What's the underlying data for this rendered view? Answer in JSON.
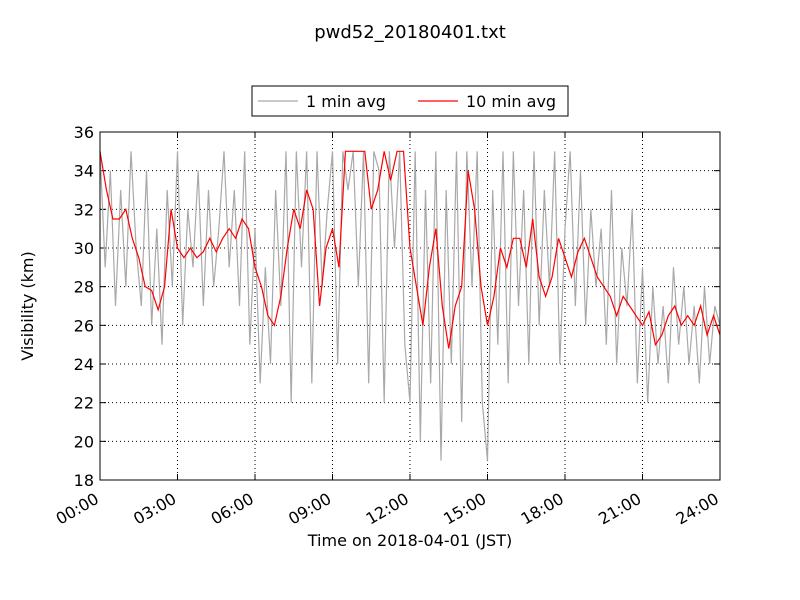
{
  "chart_data": {
    "type": "line",
    "title": "pwd52_20180401.txt",
    "xlabel": "Time on 2018-04-01 (JST)",
    "ylabel": "Visibility (km)",
    "xlim": [
      0,
      24
    ],
    "ylim": [
      18,
      36
    ],
    "xticks": [
      {
        "value": 0,
        "label": "00:00"
      },
      {
        "value": 3,
        "label": "03:00"
      },
      {
        "value": 6,
        "label": "06:00"
      },
      {
        "value": 9,
        "label": "09:00"
      },
      {
        "value": 12,
        "label": "12:00"
      },
      {
        "value": 15,
        "label": "15:00"
      },
      {
        "value": 18,
        "label": "18:00"
      },
      {
        "value": 21,
        "label": "21:00"
      },
      {
        "value": 24,
        "label": "24:00"
      }
    ],
    "yticks": [
      18,
      20,
      22,
      24,
      26,
      28,
      30,
      32,
      34,
      36
    ],
    "grid": true,
    "legend": "upper center",
    "series": [
      {
        "name": "1 min avg",
        "color": "#a9a9a9",
        "x": [
          0,
          0.2,
          0.4,
          0.6,
          0.8,
          1,
          1.2,
          1.4,
          1.6,
          1.8,
          2,
          2.2,
          2.4,
          2.6,
          2.8,
          3,
          3.2,
          3.4,
          3.6,
          3.8,
          4,
          4.2,
          4.4,
          4.6,
          4.8,
          5,
          5.2,
          5.4,
          5.6,
          5.8,
          6,
          6.2,
          6.4,
          6.6,
          6.8,
          7,
          7.2,
          7.4,
          7.6,
          7.8,
          8,
          8.2,
          8.4,
          8.6,
          8.8,
          9,
          9.2,
          9.4,
          9.6,
          9.8,
          10,
          10.2,
          10.4,
          10.6,
          10.8,
          11,
          11.2,
          11.4,
          11.6,
          11.8,
          12,
          12.2,
          12.4,
          12.6,
          12.8,
          13,
          13.2,
          13.4,
          13.6,
          13.8,
          14,
          14.2,
          14.4,
          14.6,
          14.8,
          15,
          15.2,
          15.4,
          15.6,
          15.8,
          16,
          16.2,
          16.4,
          16.6,
          16.8,
          17,
          17.2,
          17.4,
          17.6,
          17.8,
          18,
          18.2,
          18.4,
          18.6,
          18.8,
          19,
          19.2,
          19.4,
          19.6,
          19.8,
          20,
          20.2,
          20.4,
          20.6,
          20.8,
          21,
          21.2,
          21.4,
          21.6,
          21.8,
          22,
          22.2,
          22.4,
          22.6,
          22.8,
          23,
          23.2,
          23.4,
          23.6,
          23.8,
          24
        ],
        "values": [
          35,
          29,
          34,
          27,
          33,
          28,
          35,
          30,
          27,
          34,
          26,
          31,
          25,
          33,
          28,
          35,
          26,
          32,
          29,
          34,
          27,
          33,
          28,
          31,
          35,
          29,
          33,
          27,
          35,
          25,
          31,
          23,
          29,
          24,
          33,
          27,
          35,
          22,
          35,
          29,
          35,
          23,
          35,
          28,
          32,
          35,
          24,
          35,
          33,
          35,
          28,
          35,
          23,
          35,
          34,
          22,
          35,
          30,
          35,
          25,
          22,
          35,
          20,
          33,
          23,
          35,
          19,
          33,
          24,
          35,
          21,
          35,
          28,
          35,
          22,
          19,
          33,
          25,
          35,
          23,
          35,
          27,
          33,
          24,
          35,
          26,
          33,
          28,
          35,
          24,
          31,
          35,
          27,
          34,
          26,
          32,
          28,
          31,
          25,
          33,
          24,
          30,
          27,
          32,
          23,
          29,
          22,
          28,
          24,
          27,
          23,
          29,
          25,
          28,
          24,
          27,
          23,
          28,
          24,
          27,
          26
        ]
      },
      {
        "name": "10 min avg",
        "color": "#ff0000",
        "x": [
          0,
          0.25,
          0.5,
          0.75,
          1,
          1.25,
          1.5,
          1.75,
          2,
          2.25,
          2.5,
          2.75,
          3,
          3.25,
          3.5,
          3.75,
          4,
          4.25,
          4.5,
          4.75,
          5,
          5.25,
          5.5,
          5.75,
          6,
          6.25,
          6.5,
          6.75,
          7,
          7.25,
          7.5,
          7.75,
          8,
          8.25,
          8.5,
          8.75,
          9,
          9.25,
          9.5,
          9.75,
          10,
          10.25,
          10.5,
          10.75,
          11,
          11.25,
          11.5,
          11.75,
          12,
          12.25,
          12.5,
          12.75,
          13,
          13.25,
          13.5,
          13.75,
          14,
          14.25,
          14.5,
          14.75,
          15,
          15.25,
          15.5,
          15.75,
          16,
          16.25,
          16.5,
          16.75,
          17,
          17.25,
          17.5,
          17.75,
          18,
          18.25,
          18.5,
          18.75,
          19,
          19.25,
          19.5,
          19.75,
          20,
          20.25,
          20.5,
          20.75,
          21,
          21.25,
          21.5,
          21.75,
          22,
          22.25,
          22.5,
          22.75,
          23,
          23.25,
          23.5,
          23.75,
          24
        ],
        "values": [
          35,
          33,
          31.5,
          31.5,
          32,
          30.5,
          29.5,
          28,
          27.8,
          26.8,
          28,
          32,
          30,
          29.5,
          30,
          29.5,
          29.8,
          30.5,
          29.8,
          30.5,
          31,
          30.5,
          31.5,
          31,
          29,
          28,
          26.5,
          26,
          27.5,
          30,
          32,
          31,
          33,
          32,
          27,
          30,
          31,
          29,
          35,
          35,
          35,
          35,
          32,
          33,
          35,
          33.5,
          35,
          35,
          30,
          28,
          26,
          29,
          31,
          27,
          24.8,
          27,
          28,
          34,
          32,
          28,
          26,
          27.5,
          30,
          29,
          30.5,
          30.5,
          29,
          31.5,
          28.5,
          27.5,
          28.5,
          30.5,
          29.5,
          28.5,
          29.8,
          30.5,
          29.5,
          28.5,
          28,
          27.5,
          26.5,
          27.5,
          27,
          26.5,
          26,
          26.7,
          25,
          25.5,
          26.5,
          27,
          26,
          26.5,
          26,
          27,
          25.5,
          26.5,
          25.5
        ]
      }
    ]
  }
}
